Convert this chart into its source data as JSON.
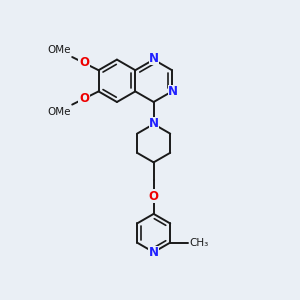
{
  "background_color": "#eaeff5",
  "bond_color": "#1a1a1a",
  "nitrogen_color": "#2020ff",
  "oxygen_color": "#ee0000",
  "line_width": 1.4,
  "font_size": 8.5,
  "fig_size": [
    3.0,
    3.0
  ],
  "dpi": 100,
  "xlim": [
    0,
    10
  ],
  "ylim": [
    0,
    10
  ]
}
